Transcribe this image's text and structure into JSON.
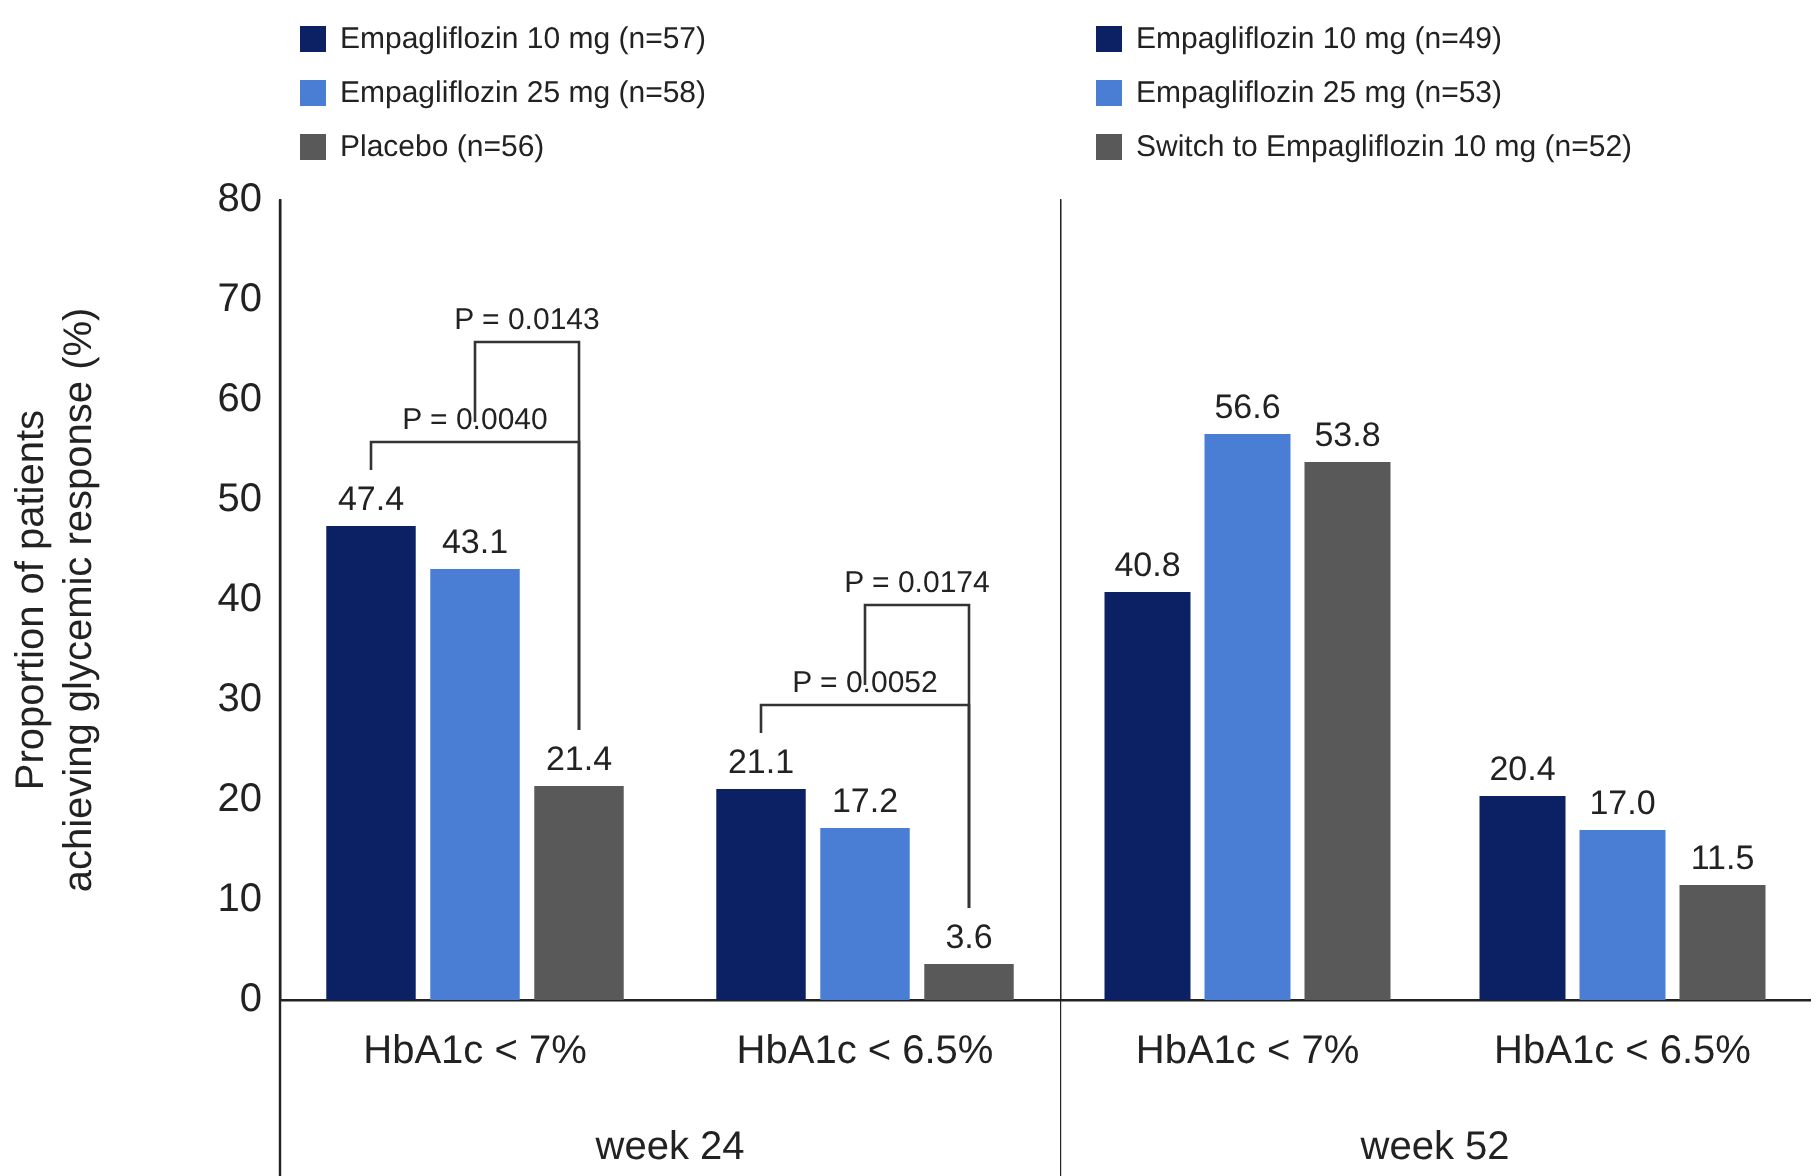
{
  "chart_data": [
    {
      "type": "bar",
      "xlabel": "week 24",
      "ylabel": [
        "Proportion of patients",
        "achieving glycemic response (%)"
      ],
      "categories": [
        "HbA1c < 7%",
        "HbA1c < 6.5%"
      ],
      "series": [
        {
          "name": "Empagliflozin 10 mg (n=57)",
          "color": "#0b2163",
          "values": [
            47.4,
            21.1
          ],
          "value_labels": [
            "47.4",
            "21.1"
          ]
        },
        {
          "name": "Empagliflozin 25 mg (n=58)",
          "color": "#4a7dd4",
          "values": [
            43.1,
            17.2
          ],
          "value_labels": [
            "43.1",
            "17.2"
          ]
        },
        {
          "name": "Placebo (n=56)",
          "color": "#595959",
          "values": [
            21.4,
            3.6
          ],
          "value_labels": [
            "21.4",
            "3.6"
          ]
        }
      ],
      "ylim": [
        0,
        80
      ],
      "yticks": [
        0,
        10,
        20,
        30,
        40,
        50,
        60,
        70,
        80
      ],
      "grid": false,
      "legend": "top",
      "annotations": [
        "P = 0.0143",
        "P = 0.0040",
        "P = 0.0174",
        "P = 0.0052"
      ]
    },
    {
      "type": "bar",
      "xlabel": "week 52",
      "categories": [
        "HbA1c < 7%",
        "HbA1c < 6.5%"
      ],
      "series": [
        {
          "name": "Empagliflozin 10 mg (n=49)",
          "color": "#0b2163",
          "values": [
            40.8,
            20.4
          ],
          "value_labels": [
            "40.8",
            "20.4"
          ]
        },
        {
          "name": "Empagliflozin 25 mg (n=53)",
          "color": "#4a7dd4",
          "values": [
            56.6,
            17.0
          ],
          "value_labels": [
            "56.6",
            "17.0"
          ]
        },
        {
          "name": "Switch to Empagliflozin 10 mg (n=52)",
          "color": "#595959",
          "values": [
            53.8,
            11.5
          ],
          "value_labels": [
            "53.8",
            "11.5"
          ]
        }
      ],
      "ylim": [
        0,
        80
      ],
      "yticks": [
        0,
        10,
        20,
        30,
        40,
        50,
        60,
        70,
        80
      ],
      "grid": false,
      "legend": "top",
      "tick_labels": "x"
    }
  ]
}
